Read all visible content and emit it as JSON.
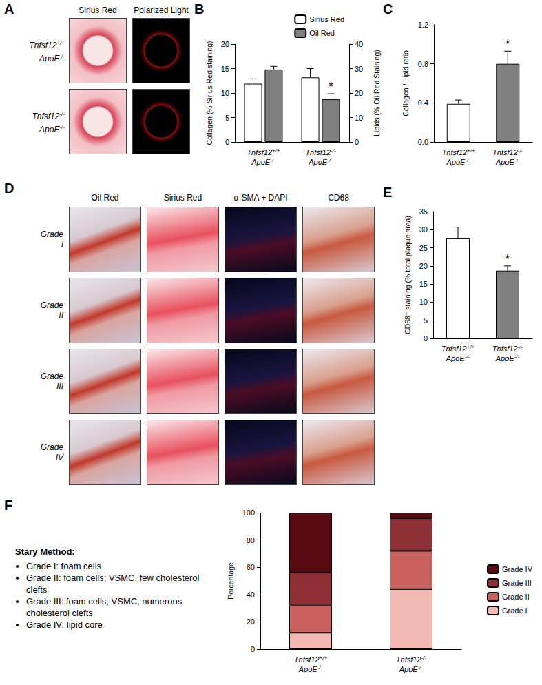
{
  "chart_data": [
    {
      "type": "bar",
      "categories": [
        "Tnfsf12+/+ ApoE-/-",
        "Tnfsf12-/- ApoE-/-"
      ],
      "series": [
        {
          "name": "Sirius Red",
          "color": "#ffffff",
          "values": [
            11.9,
            13.2
          ],
          "errors": [
            1.0,
            1.8
          ]
        },
        {
          "name": "Oil Red",
          "color": "#808080",
          "values": [
            29.6,
            17.5
          ],
          "errors": [
            1.3,
            2.2
          ],
          "axis": "y2"
        }
      ],
      "ylabel": "Collagen (% Sirius Red staining)",
      "ylim": [
        0,
        20
      ],
      "yticks": [
        0,
        5,
        10,
        15,
        20
      ],
      "y2label": "Lipids (% Oil Red Staining)",
      "y2lim": [
        0,
        40
      ],
      "y2ticks": [
        0,
        10,
        20,
        30,
        40
      ],
      "legend": "upper right",
      "grid": false,
      "annotations": [
        {
          "text": "*",
          "series": "Oil Red",
          "category": "Tnfsf12-/- ApoE-/-"
        }
      ]
    },
    {
      "type": "bar",
      "categories": [
        "Tnfsf12+/+ ApoE-/-",
        "Tnfsf12-/- ApoE-/-"
      ],
      "values": [
        0.39,
        0.8
      ],
      "errors": [
        0.04,
        0.13
      ],
      "colors": [
        "#ffffff",
        "#808080"
      ],
      "ylabel": "Collagen / Lipid ratio",
      "ylim": [
        0,
        1.2
      ],
      "yticks": [
        {
          "value": 0,
          "label": "0.0"
        },
        0.4,
        0.8,
        1.2
      ],
      "grid": false,
      "annotations": [
        {
          "text": "*",
          "category": "Tnfsf12-/- ApoE-/-"
        }
      ]
    },
    {
      "type": "bar",
      "categories": [
        "Tnfsf12+/+ ApoE-/-",
        "Tnfsf12-/- ApoE-/-"
      ],
      "values": [
        27.6,
        18.7
      ],
      "errors": [
        3.1,
        1.3
      ],
      "colors": [
        "#ffffff",
        "#808080"
      ],
      "ylabel": "CD68⁺ staining (% total plaque area)",
      "ylim": [
        0,
        35
      ],
      "yticks": [
        0,
        5,
        10,
        15,
        20,
        25,
        30,
        35
      ],
      "grid": false,
      "annotations": [
        {
          "text": "*",
          "category": "Tnfsf12-/- ApoE-/-"
        }
      ]
    },
    {
      "type": "bar",
      "stacked": true,
      "categories": [
        "Tnfsf12+/+ ApoE-/-",
        "Tnfsf12-/- ApoE-/-"
      ],
      "series": [
        {
          "name": "Grade I",
          "color": "#f2b8b2",
          "values": [
            12,
            44
          ]
        },
        {
          "name": "Grade II",
          "color": "#c9625e",
          "values": [
            20,
            28
          ]
        },
        {
          "name": "Grade III",
          "color": "#8f2f36",
          "values": [
            24,
            24
          ]
        },
        {
          "name": "Grade IV",
          "color": "#5a0b12",
          "values": [
            44,
            4
          ]
        }
      ],
      "ylabel": "Percentage",
      "ylim": [
        0,
        100
      ],
      "yticks": [
        0,
        20,
        40,
        60,
        80,
        100
      ],
      "legend": "right",
      "grid": false
    }
  ],
  "panel_labels": [
    "A",
    "B",
    "C",
    "D",
    "E",
    "F"
  ],
  "image_panels": [
    {
      "panel": "A",
      "columns": [
        "Sirius Red",
        "Polarized Light"
      ],
      "rows": [
        "Tnfsf12+/+ ApoE-/-",
        "Tnfsf12-/- ApoE-/-"
      ]
    },
    {
      "panel": "D",
      "columns": [
        "Oil Red",
        "Sirius Red",
        "α-SMA + DAPI",
        "CD68"
      ],
      "rows": [
        "Grade I",
        "Grade II",
        "Grade III",
        "Grade IV"
      ]
    }
  ],
  "stary_method": {
    "title": "Stary Method:",
    "items": [
      "Grade I: foam cells",
      "Grade II: foam cells; VSMC, few cholesterol clefts",
      "Grade III: foam cells; VSMC, numerous cholesterol clefts",
      "Grade IV: lipid core"
    ]
  }
}
